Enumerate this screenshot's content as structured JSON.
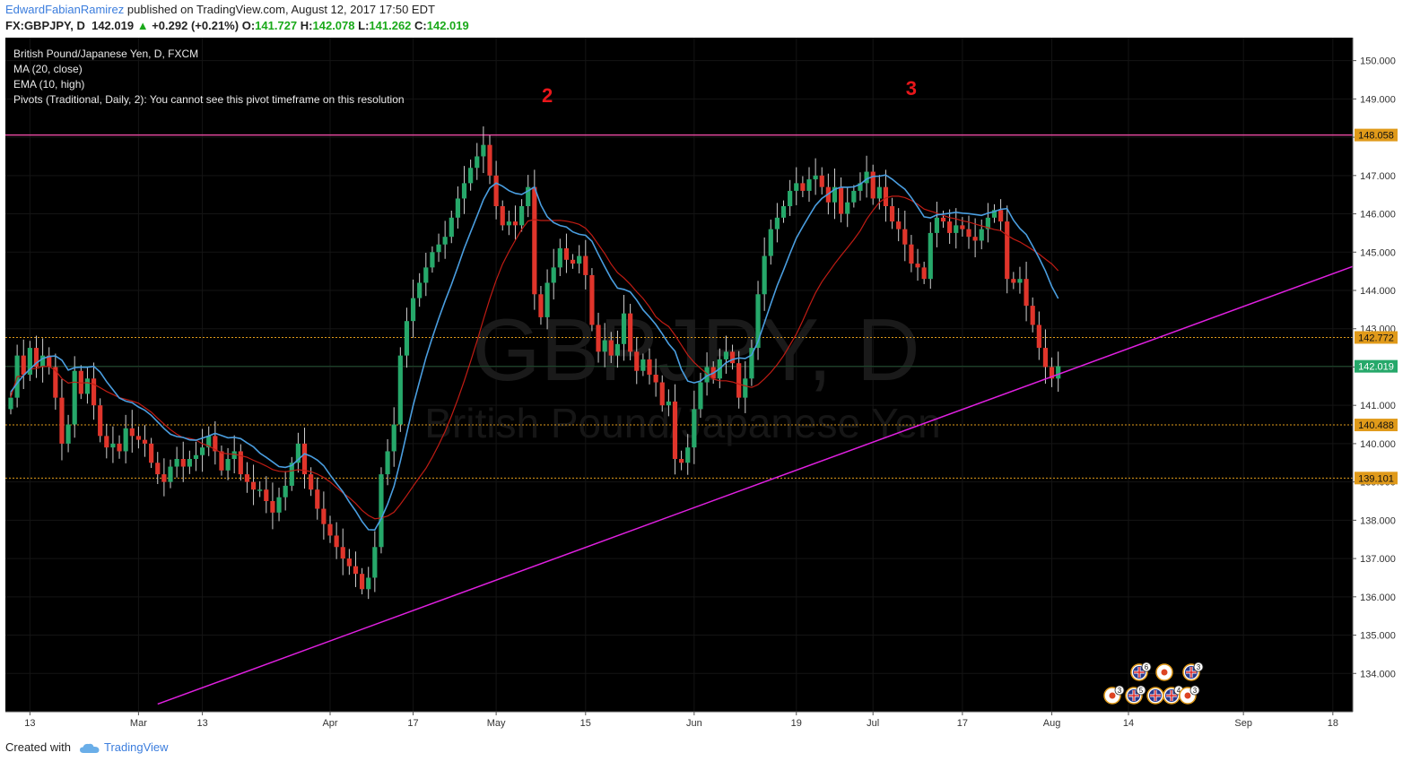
{
  "header": {
    "author": "EdwardFabianRamirez",
    "published": "published on TradingView.com, August 12, 2017 17:50 EDT",
    "symbol": "FX:GBPJPY, D",
    "last": "142.019",
    "arrow": "▲",
    "change": "+0.292 (+0.21%)",
    "o_label": "O:",
    "o": "141.727",
    "h_label": "H:",
    "h": "142.078",
    "l_label": "L:",
    "l": "141.262",
    "c_label": "C:",
    "c": "142.019"
  },
  "legend": {
    "line1": "British Pound/Japanese Yen, D, FXCM",
    "line2": "MA (20, close)",
    "line3": "EMA (10, high)",
    "line4": "Pivots (Traditional, Daily, 2): You cannot see this pivot timeframe on this resolution"
  },
  "watermark": {
    "symbol": "GBPJPY, D",
    "name": "British Pound/Japanese Yen"
  },
  "annotations": [
    {
      "text": "2",
      "date_index": 84
    },
    {
      "text": "3",
      "date_index": 141
    }
  ],
  "footer": {
    "created": "Created with",
    "brand": "TradingView"
  },
  "colors": {
    "background": "#000000",
    "up": "#26a86a",
    "down": "#e0352b",
    "ma": "#c01c14",
    "ema": "#4a9ee0",
    "trendline": "#e020e0",
    "resistance": "#e0479c",
    "support": "#e09a1a",
    "last": "#26a86a"
  },
  "chart_data": {
    "type": "candlestick",
    "title": "British Pound/Japanese Yen, D, FXCM",
    "ylim": [
      133.0,
      150.6
    ],
    "y_ticks": [
      "134.000",
      "135.000",
      "136.000",
      "137.000",
      "138.000",
      "139.000",
      "140.000",
      "141.000",
      "142.000",
      "143.000",
      "144.000",
      "145.000",
      "146.000",
      "147.000",
      "148.000",
      "149.000",
      "150.000"
    ],
    "x_ticks": [
      {
        "label": "13",
        "index": 3
      },
      {
        "label": "Mar",
        "index": 20
      },
      {
        "label": "13",
        "index": 30
      },
      {
        "label": "Apr",
        "index": 50
      },
      {
        "label": "17",
        "index": 63
      },
      {
        "label": "May",
        "index": 76
      },
      {
        "label": "15",
        "index": 90
      },
      {
        "label": "Jun",
        "index": 107
      },
      {
        "label": "19",
        "index": 123
      },
      {
        "label": "Jul",
        "index": 135
      },
      {
        "label": "17",
        "index": 149
      },
      {
        "label": "Aug",
        "index": 163
      },
      {
        "label": "14",
        "index": 175
      },
      {
        "label": "Sep",
        "index": 193
      },
      {
        "label": "18",
        "index": 207
      }
    ],
    "x_total": 212,
    "horizontal_levels": [
      {
        "value": 148.058,
        "label": "148.058",
        "style": "resistance"
      },
      {
        "value": 142.772,
        "label": "142.772",
        "style": "support"
      },
      {
        "value": 140.488,
        "label": "140.488",
        "style": "support"
      },
      {
        "value": 139.101,
        "label": "139.101",
        "style": "support"
      },
      {
        "value": 142.019,
        "label": "142.019",
        "style": "last"
      }
    ],
    "trendline": {
      "start": {
        "index": 23,
        "value": 133.2
      },
      "end": {
        "index": 211,
        "value": 144.68
      }
    },
    "closes": [
      141.2,
      142.3,
      141.8,
      142.5,
      142.0,
      142.3,
      142.0,
      141.2,
      140.0,
      140.5,
      141.9,
      141.3,
      141.7,
      141.0,
      140.2,
      139.9,
      140.0,
      139.8,
      140.4,
      140.2,
      140.1,
      140.0,
      139.5,
      139.2,
      139.0,
      139.4,
      139.6,
      139.4,
      139.6,
      139.7,
      139.9,
      140.2,
      139.8,
      139.3,
      139.6,
      139.8,
      139.2,
      139.0,
      138.8,
      138.8,
      138.5,
      138.2,
      138.6,
      138.9,
      139.5,
      140.0,
      139.2,
      138.8,
      138.3,
      137.9,
      137.6,
      137.3,
      137.0,
      136.8,
      136.6,
      136.2,
      136.5,
      137.3,
      139.2,
      139.8,
      140.5,
      142.3,
      143.2,
      143.8,
      144.2,
      144.6,
      145.0,
      145.2,
      145.4,
      145.9,
      146.4,
      146.8,
      147.2,
      147.5,
      147.8,
      147.0,
      146.2,
      145.7,
      145.8,
      145.7,
      146.2,
      146.7,
      143.9,
      143.3,
      144.2,
      144.6,
      145.1,
      144.8,
      144.7,
      144.9,
      144.4,
      143.1,
      142.4,
      142.7,
      142.3,
      142.6,
      143.4,
      142.4,
      141.9,
      142.2,
      141.8,
      141.6,
      141.0,
      141.1,
      139.6,
      139.5,
      139.9,
      140.9,
      141.6,
      142.0,
      141.7,
      142.2,
      142.4,
      142.1,
      141.2,
      141.7,
      142.5,
      143.9,
      144.9,
      145.6,
      145.9,
      146.2,
      146.6,
      146.8,
      146.6,
      146.9,
      147.0,
      146.7,
      146.3,
      146.7,
      146.0,
      146.3,
      146.6,
      146.8,
      147.1,
      146.4,
      146.7,
      146.2,
      145.8,
      145.6,
      145.2,
      144.7,
      144.6,
      144.3,
      145.5,
      145.9,
      145.8,
      145.5,
      145.7,
      145.6,
      145.4,
      145.3,
      145.6,
      145.9,
      146.1,
      145.8,
      144.3,
      144.2,
      144.3,
      143.6,
      143.1,
      142.5,
      142.0,
      141.7,
      142.019
    ],
    "ma_20_close": "series plotted as smoothed average of closes",
    "ema_10_high": "series plotted as smoothed average of highs"
  }
}
